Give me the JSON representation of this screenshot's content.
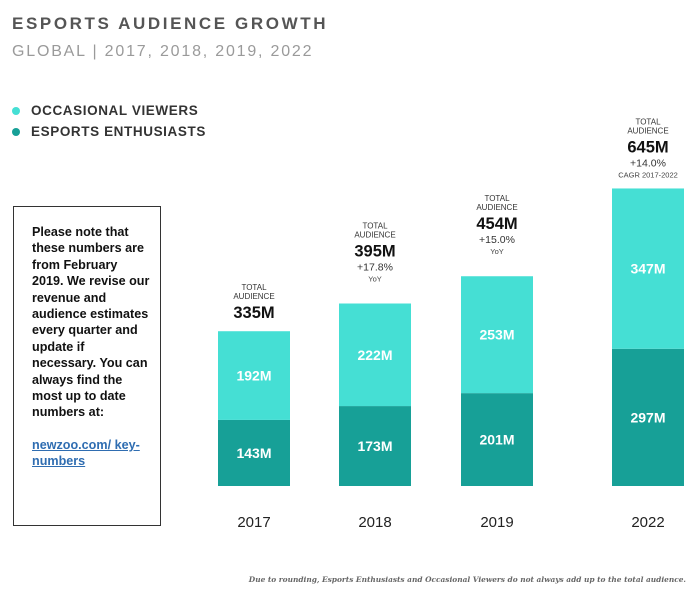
{
  "chart_data": {
    "type": "bar",
    "stacked": true,
    "title": "ESPORTS AUDIENCE GROWTH",
    "subtitle": "GLOBAL | 2017, 2018, 2019, 2022",
    "categories": [
      "2017",
      "2018",
      "2019",
      "2022"
    ],
    "series": [
      {
        "name": "ESPORTS ENTHUSIASTS",
        "color": "#17a097",
        "values": [
          143,
          173,
          201,
          297
        ],
        "labels": [
          "143M",
          "173M",
          "201M",
          "297M"
        ]
      },
      {
        "name": "OCCASIONAL VIEWERS",
        "color": "#45dfd4",
        "values": [
          192,
          222,
          253,
          347
        ],
        "labels": [
          "192M",
          "222M",
          "253M",
          "347M"
        ]
      }
    ],
    "totals": [
      {
        "label": "TOTAL\nAUDIENCE",
        "value": "335M",
        "growth": "",
        "growth_label": ""
      },
      {
        "label": "TOTAL\nAUDIENCE",
        "value": "395M",
        "growth": "+17.8%",
        "growth_label": "YoY"
      },
      {
        "label": "TOTAL\nAUDIENCE",
        "value": "454M",
        "growth": "+15.0%",
        "growth_label": "YoY"
      },
      {
        "label": "TOTAL\nAUDIENCE",
        "value": "645M",
        "growth": "+14.0%",
        "growth_label": "CAGR 2017-2022"
      }
    ],
    "ylim": [
      0,
      645
    ],
    "grid": false,
    "legend": "top-left"
  },
  "note": {
    "text": "Please note that these numbers are from February 2019. We revise our revenue and audience estimates every quarter and update if necessary. You can always find the most up to date numbers at:",
    "link": "newzoo.com/ key-numbers"
  },
  "footnote": "Due to rounding, Esports Enthusiasts and Occasional Viewers do not always add up to the total audience."
}
